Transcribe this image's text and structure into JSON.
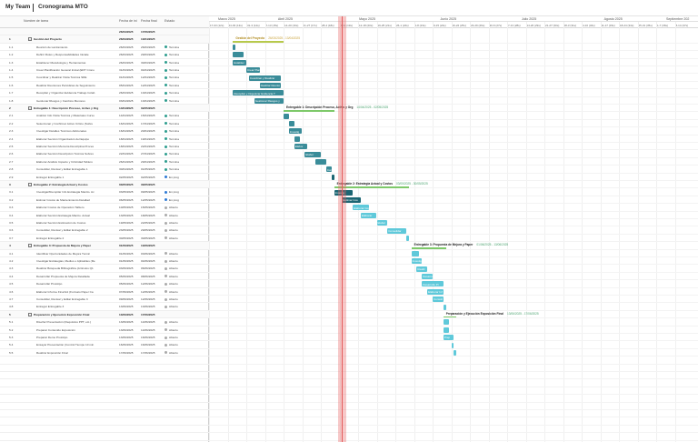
{
  "app": {
    "brand": "My Team",
    "project": "Cronograma MTO"
  },
  "table": {
    "headers": {
      "num": "",
      "name": "Nombre de tarea",
      "start": "Fecha de ini",
      "end": "Fecha final",
      "status": "Estado"
    },
    "summary_row": {
      "start": "26/03/2025",
      "end": "17/06/2025"
    },
    "rows": [
      {
        "num": "1",
        "name": "Gestión del Proyecto",
        "start": "26/03/2025",
        "end": "13/04/2025",
        "status": "",
        "summary": true
      },
      {
        "num": "1.1",
        "name": "Reunión de Lanzamiento",
        "start": "26/03/2025",
        "end": "26/03/2025",
        "status": "Termina",
        "summary": false
      },
      {
        "num": "1.2",
        "name": "Definir Roles y Responsabilidades Iniciale",
        "start": "26/03/2025",
        "end": "29/03/2025",
        "status": "Termina",
        "summary": false
      },
      {
        "num": "1.3",
        "name": "Establecer Metodología y Herramientas",
        "start": "26/03/2025",
        "end": "30/03/2025",
        "status": "Termina",
        "summary": false
      },
      {
        "num": "1.4",
        "name": "Crear Planificación General Inicial (EDT Crono",
        "start": "31/03/2025",
        "end": "04/04/2025",
        "status": "Termina",
        "summary": false
      },
      {
        "num": "1.5",
        "name": "Coordinar y Realizar Visita Técnica SDE",
        "start": "01/04/2025",
        "end": "12/04/2025",
        "status": "Termina",
        "summary": false
      },
      {
        "num": "1.6",
        "name": "Realizar Reuniones Periódicas de Seguimiento",
        "start": "05/04/2025",
        "end": "12/04/2025",
        "status": "Termina",
        "summary": false
      },
      {
        "num": "1.7",
        "name": "Recopilar y Organizar Evidencia Trabajo Colab",
        "start": "26/03/2025",
        "end": "13/04/2025",
        "status": "Termina",
        "summary": false
      },
      {
        "num": "1.8",
        "name": "Gestionar Riesgos y Cambios Menores",
        "start": "03/04/2025",
        "end": "13/04/2025",
        "status": "Termina",
        "summary": false
      },
      {
        "num": "2",
        "name": "Entregable 1: Descripción Proceso, Activo y Org",
        "start": "14/04/2025",
        "end": "02/05/2025",
        "status": "",
        "summary": true
      },
      {
        "num": "2.1",
        "name": "Analizar Info Visita Técnica y Materiales Curso",
        "start": "14/04/2025",
        "end": "15/04/2025",
        "status": "Termina",
        "summary": false
      },
      {
        "num": "2.2",
        "name": "Seleccionar y Confirmar Activo Crítico (Sobre",
        "start": "16/04/2025",
        "end": "17/04/2025",
        "status": "Termina",
        "summary": false
      },
      {
        "num": "2.3",
        "name": "Investigar Detalles Técnicos Adicionales",
        "start": "16/04/2025",
        "end": "20/04/2025",
        "status": "Termina",
        "summary": false
      },
      {
        "num": "2.4",
        "name": "Elaborar Sección Organización del Equipo",
        "start": "18/04/2025",
        "end": "19/04/2025",
        "status": "Termina",
        "summary": false
      },
      {
        "num": "2.5",
        "name": "Elaborar Sección Memoria Descriptiva Proces",
        "start": "18/04/2025",
        "end": "22/04/2025",
        "status": "Termina",
        "summary": false
      },
      {
        "num": "2.6",
        "name": "Elaborar Sección Descripción Técnica Sobres",
        "start": "22/04/2025",
        "end": "27/04/2025",
        "status": "Termina",
        "summary": false
      },
      {
        "num": "2.7",
        "name": "Elaborar Análisis Impacto y Criticidad Tablero",
        "start": "26/04/2025",
        "end": "29/04/2025",
        "status": "Termina",
        "summary": false
      },
      {
        "num": "2.8",
        "name": "Consolidar, Revisar y Editar Entregable 1",
        "start": "30/04/2025",
        "end": "01/05/2025",
        "status": "Termina",
        "summary": false
      },
      {
        "num": "2.9",
        "name": "Entregar Entregable 1",
        "start": "02/05/2025",
        "end": "02/05/2025",
        "status": "En prog",
        "summary": false
      },
      {
        "num": "3",
        "name": "Entregable 2: Estrategia Actual y Costos",
        "start": "03/05/2025",
        "end": "30/05/2025",
        "status": "",
        "summary": true
      },
      {
        "num": "3.1",
        "name": "Investigar/Recopilar Info Estrategia Mantto. Ac",
        "start": "03/05/2025",
        "end": "09/05/2025",
        "status": "En prog",
        "summary": false
      },
      {
        "num": "3.2",
        "name": "Estimar Costos de Mantenimiento Detallad",
        "start": "06/05/2025",
        "end": "12/05/2025",
        "status": "En prog",
        "summary": false
      },
      {
        "num": "3.3",
        "name": "Elaborar Costos de Operación Tablero",
        "start": "10/05/2025",
        "end": "15/05/2025",
        "status": "Abierto",
        "summary": false
      },
      {
        "num": "3.4",
        "name": "Elaborar Sección Estrategia Mantto. Actual",
        "start": "13/05/2025",
        "end": "18/05/2025",
        "status": "Abierto",
        "summary": false
      },
      {
        "num": "3.5",
        "name": "Elaborar Sección Estimación de Costos",
        "start": "19/05/2025",
        "end": "22/05/2025",
        "status": "Abierto",
        "summary": false
      },
      {
        "num": "3.6",
        "name": "Consolidar, Revisar y Editar Entregable 2",
        "start": "23/05/2025",
        "end": "29/05/2025",
        "status": "Abierto",
        "summary": false
      },
      {
        "num": "3.7",
        "name": "Entregar Entregable 2",
        "start": "30/05/2025",
        "end": "30/05/2025",
        "status": "Abierto",
        "summary": false
      },
      {
        "num": "4",
        "name": "Entregable 3: Propuesta de Mejora y Paper",
        "start": "01/06/2025",
        "end": "13/06/2025",
        "status": "",
        "summary": true
      },
      {
        "num": "4.1",
        "name": "Identificar Oportunidades de Mejora Técnic",
        "start": "01/06/2025",
        "end": "03/06/2025",
        "status": "Abierto",
        "summary": false
      },
      {
        "num": "4.2",
        "name": "Investigar Estrategias, Medios o Aplicables (Re",
        "start": "01/06/2025",
        "end": "04/06/2025",
        "status": "Abierto",
        "summary": false
      },
      {
        "num": "4.3",
        "name": "Realizar Búsqueda Bibliográfica (Artículos Q1",
        "start": "03/06/2025",
        "end": "06/06/2025",
        "status": "Abierto",
        "summary": false
      },
      {
        "num": "4.4",
        "name": "Desarrollar Propuesta de Mejora Detallada",
        "start": "05/06/2025",
        "end": "08/06/2025",
        "status": "Abierto",
        "summary": false
      },
      {
        "num": "4.5",
        "name": "Desarrollar Prototipo",
        "start": "05/06/2025",
        "end": "12/06/2025",
        "status": "Abierto",
        "summary": false
      },
      {
        "num": "4.6",
        "name": "Elaborar Informe Final E1 (Formato Paper Ca",
        "start": "07/06/2025",
        "end": "12/06/2025",
        "status": "Abierto",
        "summary": false
      },
      {
        "num": "4.7",
        "name": "Consolidar, Revisar y Editar Entregable 3",
        "start": "09/06/2025",
        "end": "12/06/2025",
        "status": "Abierto",
        "summary": false
      },
      {
        "num": "4.8",
        "name": "Entregar Entregable 3",
        "start": "13/06/2025",
        "end": "13/06/2025",
        "status": "Abierto",
        "summary": false
      },
      {
        "num": "5",
        "name": "Preparación y Ejecución Exposición Final",
        "start": "13/06/2025",
        "end": "17/06/2025",
        "status": "",
        "summary": true
      },
      {
        "num": "5.1",
        "name": "Diseñar Presentación (Requisitos PPT, etc.)",
        "start": "13/06/2025",
        "end": "14/06/2025",
        "status": "Abierto",
        "summary": false
      },
      {
        "num": "5.2",
        "name": "Preparar Contenido Exposición",
        "start": "13/06/2025",
        "end": "14/06/2025",
        "status": "Abierto",
        "summary": false
      },
      {
        "num": "5.3",
        "name": "Preparar Demo Prototipo",
        "start": "13/06/2025",
        "end": "16/06/2025",
        "status": "Abierto",
        "summary": false
      },
      {
        "num": "5.4",
        "name": "Ensayar Presentación (Control Tiempo 10 min",
        "start": "16/06/2025",
        "end": "16/06/2025",
        "status": "Abierto",
        "summary": false
      },
      {
        "num": "5.5",
        "name": "Realizar Exposición Final",
        "start": "17/06/2025",
        "end": "17/06/2025",
        "status": "Abierto",
        "summary": false
      }
    ]
  },
  "timeline": {
    "months": [
      "Marzo 2025",
      "Abril 2025",
      "Mayo 2025",
      "Junio 2025",
      "Julio 2025",
      "Agosto 2025",
      "Septiembre 202"
    ],
    "weeks": [
      "17-03 (12s)",
      "24-03 (13s)",
      "31-3 (14s)",
      "7-13 (15s)",
      "14-20 (16s)",
      "21-27 (17s)",
      "28-4 (18s)",
      "5-11 (19s)",
      "12-18 (20s)",
      "19-25 (21s)",
      "26-1 (22s)",
      "2-8 (23s)",
      "9-15 (24s)",
      "16-22 (25s)",
      "23-29 (26s)",
      "30-6 (27s)",
      "7-13 (28s)",
      "14-20 (29s)",
      "21-27 (30s)",
      "28-3 (31s)",
      "4-10 (32s)",
      "11-17 (33s)",
      "18-24 (34s)",
      "25-31 (35s)",
      "1-7 (36s)",
      "8-14 (37s)"
    ],
    "summary_labels": [
      {
        "text": "Gestión del Proyecto",
        "dates": "26/03/2025 - 13/04/2025"
      },
      {
        "text": "Entregable 1: Descripción Proceso, Activo y Org",
        "dates": "14/04/2025 - 02/05/2025"
      },
      {
        "text": "Entregable 2: Estrategia Actual y Costos",
        "dates": "03/05/2025 - 30/05/2025"
      },
      {
        "text": "Entregable 3: Propuesta de Mejora y Paper",
        "dates": "01/06/2025 - 13/06/2025"
      },
      {
        "text": "Preparación y Ejecución Exposición Final",
        "dates": "13/06/2025 - 17/06/2025"
      }
    ],
    "bar_labels": [
      "Establec",
      "Crear Planifi",
      "Coordinar y Realizar",
      "Realizar Reunio",
      "Recopilar y Organizar Evidencia T",
      "Gestionar Riesgos y",
      "Investig",
      "Elabor",
      "Elabor",
      "Consoli",
      "Investig",
      "Estimar Cos",
      "Elaborar Costos",
      "Elaborar",
      "Elabor",
      "Consolidar",
      "Investiga",
      "Realiz",
      "Desarrollar P",
      "Desarrollo Pr",
      "Elaborar Inf",
      "Consoli",
      "Prep"
    ],
    "today": "06/05/2025"
  },
  "colors": {
    "done": "#3a8c99",
    "progress": "#1c6673",
    "open": "#5fc9da",
    "summary_done": "#b7c94b",
    "summary_open": "#7ec96a",
    "status_done": "#2f9e8f",
    "status_progress": "#2f7bd6",
    "status_open": "#aaaaaa"
  }
}
